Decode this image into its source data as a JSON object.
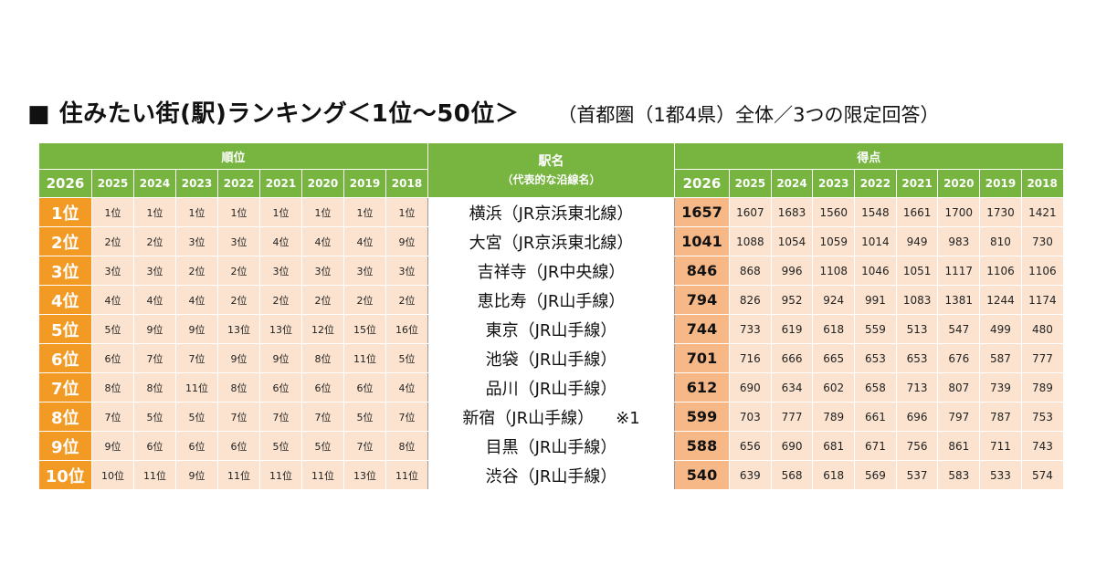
{
  "title": {
    "marker": "■",
    "main": "住みたい街(駅)ランキング＜1位～50位＞",
    "sub": "（首都圏（1都4県）全体／3つの限定回答）"
  },
  "headers": {
    "rank_group": "順位",
    "station_line1": "駅名",
    "station_line2": "（代表的な沿線名）",
    "score_group": "得点",
    "rank_years": [
      "2026",
      "2025",
      "2024",
      "2023",
      "2022",
      "2021",
      "2020",
      "2019",
      "2018"
    ],
    "score_years": [
      "2026",
      "2025",
      "2024",
      "2023",
      "2022",
      "2021",
      "2020",
      "2019",
      "2018"
    ]
  },
  "rows": [
    {
      "rank": "1位",
      "past": [
        "1位",
        "1位",
        "1位",
        "1位",
        "1位",
        "1位",
        "1位",
        "1位"
      ],
      "station": "横浜（JR京浜東北線）",
      "note": "",
      "score": "1657",
      "past_scores": [
        "1607",
        "1683",
        "1560",
        "1548",
        "1661",
        "1700",
        "1730",
        "1421"
      ]
    },
    {
      "rank": "2位",
      "past": [
        "2位",
        "2位",
        "3位",
        "3位",
        "4位",
        "4位",
        "4位",
        "9位"
      ],
      "station": "大宮（JR京浜東北線）",
      "note": "",
      "score": "1041",
      "past_scores": [
        "1088",
        "1054",
        "1059",
        "1014",
        "949",
        "983",
        "810",
        "730"
      ]
    },
    {
      "rank": "3位",
      "past": [
        "3位",
        "3位",
        "2位",
        "2位",
        "3位",
        "3位",
        "3位",
        "3位"
      ],
      "station": "吉祥寺（JR中央線）",
      "note": "",
      "score": "846",
      "past_scores": [
        "868",
        "996",
        "1108",
        "1046",
        "1051",
        "1117",
        "1106",
        "1106"
      ]
    },
    {
      "rank": "4位",
      "past": [
        "4位",
        "4位",
        "4位",
        "2位",
        "2位",
        "2位",
        "2位",
        "2位"
      ],
      "station": "恵比寿（JR山手線）",
      "note": "",
      "score": "794",
      "past_scores": [
        "826",
        "952",
        "924",
        "991",
        "1083",
        "1381",
        "1244",
        "1174"
      ]
    },
    {
      "rank": "5位",
      "past": [
        "5位",
        "9位",
        "9位",
        "13位",
        "13位",
        "12位",
        "15位",
        "16位"
      ],
      "station": "東京（JR山手線）",
      "note": "",
      "score": "744",
      "past_scores": [
        "733",
        "619",
        "618",
        "559",
        "513",
        "547",
        "499",
        "480"
      ]
    },
    {
      "rank": "6位",
      "past": [
        "6位",
        "7位",
        "7位",
        "9位",
        "9位",
        "8位",
        "11位",
        "5位"
      ],
      "station": "池袋（JR山手線）",
      "note": "",
      "score": "701",
      "past_scores": [
        "716",
        "666",
        "665",
        "653",
        "653",
        "676",
        "587",
        "777"
      ]
    },
    {
      "rank": "7位",
      "past": [
        "8位",
        "8位",
        "11位",
        "8位",
        "6位",
        "6位",
        "6位",
        "4位"
      ],
      "station": "品川（JR山手線）",
      "note": "",
      "score": "612",
      "past_scores": [
        "690",
        "634",
        "602",
        "658",
        "713",
        "807",
        "739",
        "789"
      ]
    },
    {
      "rank": "8位",
      "past": [
        "7位",
        "5位",
        "5位",
        "7位",
        "7位",
        "7位",
        "5位",
        "7位"
      ],
      "station": "新宿（JR山手線）",
      "note": "※1",
      "score": "599",
      "past_scores": [
        "703",
        "777",
        "789",
        "661",
        "696",
        "797",
        "787",
        "753"
      ]
    },
    {
      "rank": "9位",
      "past": [
        "9位",
        "6位",
        "6位",
        "6位",
        "5位",
        "5位",
        "7位",
        "8位"
      ],
      "station": "目黒（JR山手線）",
      "note": "",
      "score": "588",
      "past_scores": [
        "656",
        "690",
        "681",
        "671",
        "756",
        "861",
        "711",
        "743"
      ]
    },
    {
      "rank": "10位",
      "past": [
        "10位",
        "11位",
        "9位",
        "11位",
        "11位",
        "11位",
        "13位",
        "11位"
      ],
      "station": "渋谷（JR山手線）",
      "note": "",
      "score": "540",
      "past_scores": [
        "639",
        "568",
        "618",
        "569",
        "537",
        "583",
        "533",
        "574"
      ]
    }
  ]
}
